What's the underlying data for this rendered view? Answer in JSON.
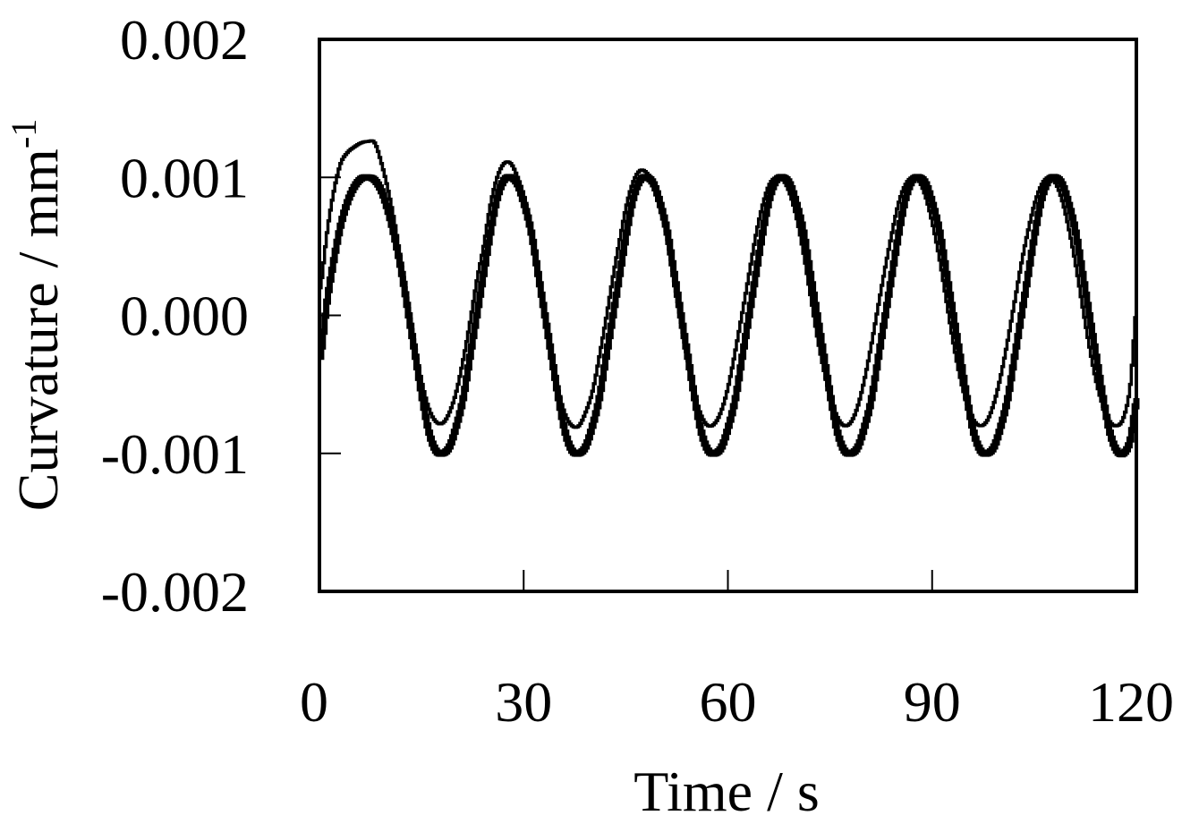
{
  "chart_data": {
    "type": "line",
    "title": "",
    "xlabel": "Time / s",
    "ylabel": {
      "text": "Curvature / mm",
      "superscript": "-1"
    },
    "xlim": [
      0,
      120
    ],
    "ylim": [
      -0.002,
      0.002
    ],
    "x_ticks": [
      "0",
      "30",
      "60",
      "90",
      "120"
    ],
    "y_ticks": [
      "0.002",
      "0.001",
      "0.000",
      "-0.001",
      "-0.002"
    ],
    "grid": false,
    "legend": "none",
    "step_style": true,
    "series": [
      {
        "style": "thick",
        "color": "#000000",
        "points": [
          [
            0,
            -0.0003
          ],
          [
            1,
            0.0001
          ],
          [
            2,
            0.0004
          ],
          [
            3,
            0.00065
          ],
          [
            4,
            0.00082
          ],
          [
            5,
            0.00093
          ],
          [
            6,
            0.00099
          ],
          [
            7,
            0.001
          ],
          [
            8,
            0.00098
          ],
          [
            9,
            0.0009
          ],
          [
            10,
            0.00075
          ],
          [
            11,
            0.00055
          ],
          [
            12,
            0.0003
          ],
          [
            13,
            0.0
          ],
          [
            14,
            -0.0003
          ],
          [
            15,
            -0.0006
          ],
          [
            16,
            -0.00085
          ],
          [
            17,
            -0.00098
          ],
          [
            18,
            -0.001
          ],
          [
            19,
            -0.00095
          ],
          [
            20,
            -0.0008
          ],
          [
            21,
            -0.0006
          ],
          [
            22,
            -0.0003
          ],
          [
            23,
            0.0
          ],
          [
            24,
            0.0003
          ],
          [
            25,
            0.0006
          ],
          [
            26,
            0.00085
          ],
          [
            27,
            0.00098
          ],
          [
            28,
            0.001
          ],
          [
            29,
            0.00095
          ],
          [
            30,
            0.0008
          ],
          [
            31,
            0.0006
          ],
          [
            32,
            0.0003
          ],
          [
            33,
            0.0
          ],
          [
            34,
            -0.0003
          ],
          [
            35,
            -0.0006
          ],
          [
            36,
            -0.00085
          ],
          [
            37,
            -0.00098
          ],
          [
            38,
            -0.001
          ],
          [
            39,
            -0.00095
          ],
          [
            40,
            -0.0008
          ],
          [
            41,
            -0.0006
          ],
          [
            42,
            -0.0003
          ],
          [
            43,
            0.0
          ],
          [
            44,
            0.0003
          ],
          [
            45,
            0.0006
          ],
          [
            46,
            0.00085
          ],
          [
            47,
            0.00098
          ],
          [
            48,
            0.001
          ],
          [
            49,
            0.00095
          ],
          [
            50,
            0.0008
          ],
          [
            51,
            0.0006
          ],
          [
            52,
            0.0003
          ],
          [
            53,
            0.0
          ],
          [
            54,
            -0.0003
          ],
          [
            55,
            -0.0006
          ],
          [
            56,
            -0.00085
          ],
          [
            57,
            -0.00098
          ],
          [
            58,
            -0.001
          ],
          [
            59,
            -0.00095
          ],
          [
            60,
            -0.0008
          ],
          [
            61,
            -0.0006
          ],
          [
            62,
            -0.0003
          ],
          [
            63,
            0.0
          ],
          [
            64,
            0.0003
          ],
          [
            65,
            0.0006
          ],
          [
            66,
            0.00085
          ],
          [
            67,
            0.00098
          ],
          [
            68,
            0.001
          ],
          [
            69,
            0.00095
          ],
          [
            70,
            0.0008
          ],
          [
            71,
            0.0006
          ],
          [
            72,
            0.0003
          ],
          [
            73,
            0.0
          ],
          [
            74,
            -0.0003
          ],
          [
            75,
            -0.0006
          ],
          [
            76,
            -0.00085
          ],
          [
            77,
            -0.00098
          ],
          [
            78,
            -0.001
          ],
          [
            79,
            -0.00095
          ],
          [
            80,
            -0.0008
          ],
          [
            81,
            -0.0006
          ],
          [
            82,
            -0.0003
          ],
          [
            83,
            0.0
          ],
          [
            84,
            0.0003
          ],
          [
            85,
            0.0006
          ],
          [
            86,
            0.00085
          ],
          [
            87,
            0.00098
          ],
          [
            88,
            0.001
          ],
          [
            89,
            0.00095
          ],
          [
            90,
            0.0008
          ],
          [
            91,
            0.0006
          ],
          [
            92,
            0.0003
          ],
          [
            93,
            0.0
          ],
          [
            94,
            -0.0003
          ],
          [
            95,
            -0.0006
          ],
          [
            96,
            -0.00085
          ],
          [
            97,
            -0.00098
          ],
          [
            98,
            -0.001
          ],
          [
            99,
            -0.00095
          ],
          [
            100,
            -0.0008
          ],
          [
            101,
            -0.0006
          ],
          [
            102,
            -0.0003
          ],
          [
            103,
            0.0
          ],
          [
            104,
            0.0003
          ],
          [
            105,
            0.0006
          ],
          [
            106,
            0.00085
          ],
          [
            107,
            0.00098
          ],
          [
            108,
            0.001
          ],
          [
            109,
            0.00095
          ],
          [
            110,
            0.0008
          ],
          [
            111,
            0.0006
          ],
          [
            112,
            0.0003
          ],
          [
            113,
            0.0
          ],
          [
            114,
            -0.0003
          ],
          [
            115,
            -0.0006
          ],
          [
            116,
            -0.00085
          ],
          [
            117,
            -0.00098
          ],
          [
            118,
            -0.001
          ],
          [
            119,
            -0.0009
          ],
          [
            120,
            -0.0006
          ]
        ]
      },
      {
        "style": "thin",
        "color": "#000000",
        "points": [
          [
            0,
            0.0002
          ],
          [
            1,
            0.0006
          ],
          [
            2,
            0.0009
          ],
          [
            3,
            0.0011
          ],
          [
            4,
            0.00118
          ],
          [
            5,
            0.00122
          ],
          [
            6,
            0.00125
          ],
          [
            7,
            0.00126
          ],
          [
            8,
            0.00125
          ],
          [
            9,
            0.0011
          ],
          [
            10,
            0.0009
          ],
          [
            11,
            0.00065
          ],
          [
            12,
            0.00035
          ],
          [
            13,
            5e-05
          ],
          [
            14,
            -0.00025
          ],
          [
            15,
            -0.0005
          ],
          [
            16,
            -0.00068
          ],
          [
            17,
            -0.00077
          ],
          [
            18,
            -0.00078
          ],
          [
            19,
            -0.0007
          ],
          [
            20,
            -0.00055
          ],
          [
            21,
            -0.00032
          ],
          [
            22,
            -5e-05
          ],
          [
            23,
            0.00025
          ],
          [
            24,
            0.0005
          ],
          [
            25,
            0.0008
          ],
          [
            26,
            0.001
          ],
          [
            27,
            0.0011
          ],
          [
            28,
            0.0011
          ],
          [
            29,
            0.001
          ],
          [
            30,
            0.00085
          ],
          [
            31,
            0.0006
          ],
          [
            32,
            0.0003
          ],
          [
            33,
            0.0
          ],
          [
            34,
            -0.0003
          ],
          [
            35,
            -0.00055
          ],
          [
            36,
            -0.00072
          ],
          [
            37,
            -0.0008
          ],
          [
            38,
            -0.0008
          ],
          [
            39,
            -0.0007
          ],
          [
            40,
            -0.00055
          ],
          [
            41,
            -0.0003
          ],
          [
            42,
            -2e-05
          ],
          [
            43,
            0.00028
          ],
          [
            44,
            0.00055
          ],
          [
            45,
            0.0008
          ],
          [
            46,
            0.00097
          ],
          [
            47,
            0.00105
          ],
          [
            48,
            0.00103
          ],
          [
            49,
            0.00095
          ],
          [
            50,
            0.00078
          ],
          [
            51,
            0.00055
          ],
          [
            52,
            0.00025
          ],
          [
            53,
            -5e-05
          ],
          [
            54,
            -0.00033
          ],
          [
            55,
            -0.00057
          ],
          [
            56,
            -0.00073
          ],
          [
            57,
            -0.0008
          ],
          [
            58,
            -0.00078
          ],
          [
            59,
            -0.00068
          ],
          [
            60,
            -0.0005
          ],
          [
            61,
            -0.00025
          ],
          [
            62,
            2e-05
          ],
          [
            63,
            0.0003
          ],
          [
            64,
            0.00058
          ],
          [
            65,
            0.0008
          ],
          [
            66,
            0.00095
          ],
          [
            67,
            0.001
          ],
          [
            68,
            0.00098
          ],
          [
            69,
            0.00088
          ],
          [
            70,
            0.0007
          ],
          [
            71,
            0.00045
          ],
          [
            72,
            0.00015
          ],
          [
            73,
            -0.00015
          ],
          [
            74,
            -0.0004
          ],
          [
            75,
            -0.0006
          ],
          [
            76,
            -0.00074
          ],
          [
            77,
            -0.0008
          ],
          [
            78,
            -0.00077
          ],
          [
            79,
            -0.00065
          ],
          [
            80,
            -0.00045
          ],
          [
            81,
            -0.0002
          ],
          [
            82,
            8e-05
          ],
          [
            83,
            0.00035
          ],
          [
            84,
            0.0006
          ],
          [
            85,
            0.00082
          ],
          [
            86,
            0.00095
          ],
          [
            87,
            0.001
          ],
          [
            88,
            0.00097
          ],
          [
            89,
            0.00085
          ],
          [
            90,
            0.00065
          ],
          [
            91,
            0.0004
          ],
          [
            92,
            0.0001
          ],
          [
            93,
            -0.0002
          ],
          [
            94,
            -0.00045
          ],
          [
            95,
            -0.00064
          ],
          [
            96,
            -0.00076
          ],
          [
            97,
            -0.0008
          ],
          [
            98,
            -0.00076
          ],
          [
            99,
            -0.00063
          ],
          [
            100,
            -0.00043
          ],
          [
            101,
            -0.00018
          ],
          [
            102,
            0.0001
          ],
          [
            103,
            0.00038
          ],
          [
            104,
            0.00062
          ],
          [
            105,
            0.00082
          ],
          [
            106,
            0.00095
          ],
          [
            107,
            0.001
          ],
          [
            108,
            0.00096
          ],
          [
            109,
            0.00083
          ],
          [
            110,
            0.00062
          ],
          [
            111,
            0.00036
          ],
          [
            112,
            6e-05
          ],
          [
            113,
            -0.00023
          ],
          [
            114,
            -0.00048
          ],
          [
            115,
            -0.00066
          ],
          [
            116,
            -0.00077
          ],
          [
            117,
            -0.0008
          ],
          [
            118,
            -0.00074
          ],
          [
            119,
            -0.0005
          ],
          [
            120,
            0.0001
          ]
        ]
      }
    ]
  }
}
